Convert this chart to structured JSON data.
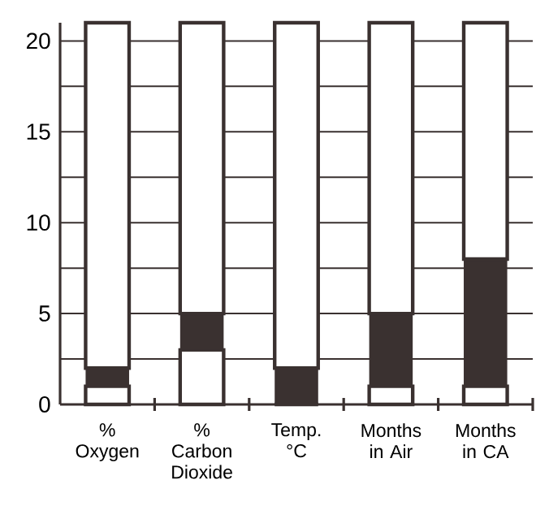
{
  "chart_data": {
    "type": "bar",
    "categories": [
      "% Oxygen",
      "% Carbon Dioxide",
      "Temp. °C",
      "Months in Air",
      "Months in CA"
    ],
    "series": [
      {
        "color": "#ffffff",
        "values": [
          1,
          3,
          0,
          1,
          1
        ]
      },
      {
        "color": "#3a3130",
        "values": [
          1,
          2,
          2,
          4,
          7
        ]
      },
      {
        "color": "#ffffff",
        "values": [
          19,
          16,
          19,
          16,
          13
        ]
      }
    ],
    "stacked": true,
    "ylim": [
      0,
      21
    ],
    "yticks": [
      0,
      {
        "value": 2.5,
        "label": null
      },
      5,
      {
        "value": 7.5,
        "label": null
      },
      10,
      {
        "value": 12.5,
        "label": null
      },
      15,
      {
        "value": 17.5,
        "label": null
      },
      20
    ],
    "grid": "y"
  }
}
